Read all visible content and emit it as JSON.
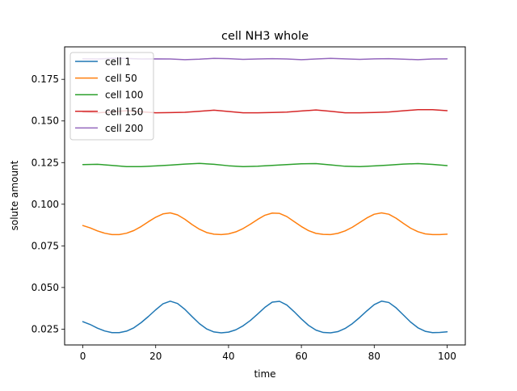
{
  "chart_data": {
    "type": "line",
    "title": "cell NH3 whole",
    "xlabel": "time",
    "ylabel": "solute amount",
    "xlim": [
      -5,
      105
    ],
    "ylim": [
      0.0155,
      0.1945
    ],
    "xticks": [
      0,
      20,
      40,
      60,
      80,
      100
    ],
    "yticks": [
      0.025,
      0.05,
      0.075,
      0.1,
      0.125,
      0.15,
      0.175
    ],
    "xtick_labels": [
      "0",
      "20",
      "40",
      "60",
      "80",
      "100"
    ],
    "ytick_labels": [
      "0.025",
      "0.050",
      "0.075",
      "0.100",
      "0.125",
      "0.150",
      "0.175"
    ],
    "grid": false,
    "legend_position": "top-left",
    "series": [
      {
        "name": "cell 1",
        "color": "#1f77b4",
        "x": [
          0,
          2,
          4,
          6,
          8,
          10,
          12,
          14,
          16,
          18,
          20,
          22,
          24,
          26,
          28,
          30,
          32,
          34,
          36,
          38,
          40,
          42,
          44,
          46,
          48,
          50,
          52,
          54,
          56,
          58,
          60,
          62,
          64,
          66,
          68,
          70,
          72,
          74,
          76,
          78,
          80,
          82,
          84,
          86,
          88,
          90,
          92,
          94,
          96,
          98,
          100
        ],
        "y": [
          0.0295,
          0.0278,
          0.0256,
          0.0239,
          0.0229,
          0.0229,
          0.0238,
          0.0258,
          0.0289,
          0.0326,
          0.0366,
          0.0402,
          0.0418,
          0.0404,
          0.0369,
          0.0325,
          0.0283,
          0.0251,
          0.0233,
          0.0228,
          0.0232,
          0.0246,
          0.027,
          0.0302,
          0.0341,
          0.0381,
          0.0412,
          0.0417,
          0.0395,
          0.0355,
          0.0311,
          0.0272,
          0.0244,
          0.023,
          0.0228,
          0.0235,
          0.0254,
          0.0283,
          0.032,
          0.036,
          0.0397,
          0.0418,
          0.041,
          0.0378,
          0.0335,
          0.0292,
          0.0258,
          0.0237,
          0.0229,
          0.023,
          0.0234
        ]
      },
      {
        "name": "cell 50",
        "color": "#ff7f0e",
        "x": [
          0,
          2,
          4,
          6,
          8,
          10,
          12,
          14,
          16,
          18,
          20,
          22,
          24,
          26,
          28,
          30,
          32,
          34,
          36,
          38,
          40,
          42,
          44,
          46,
          48,
          50,
          52,
          54,
          56,
          58,
          60,
          62,
          64,
          66,
          68,
          70,
          72,
          74,
          76,
          78,
          80,
          82,
          84,
          86,
          88,
          90,
          92,
          94,
          96,
          98,
          100
        ],
        "y": [
          0.0872,
          0.0858,
          0.084,
          0.0826,
          0.0818,
          0.0818,
          0.0826,
          0.0842,
          0.0866,
          0.0895,
          0.0922,
          0.0942,
          0.0948,
          0.0936,
          0.091,
          0.0878,
          0.085,
          0.083,
          0.082,
          0.0818,
          0.0822,
          0.0834,
          0.0854,
          0.088,
          0.0909,
          0.0934,
          0.0947,
          0.0945,
          0.0926,
          0.0896,
          0.0866,
          0.0841,
          0.0825,
          0.0819,
          0.0818,
          0.0825,
          0.084,
          0.0862,
          0.089,
          0.0918,
          0.094,
          0.0948,
          0.094,
          0.0916,
          0.0885,
          0.0856,
          0.0835,
          0.0822,
          0.0818,
          0.0818,
          0.082
        ]
      },
      {
        "name": "cell 100",
        "color": "#2ca02c",
        "x": [
          0,
          4,
          8,
          12,
          16,
          20,
          24,
          28,
          32,
          36,
          40,
          44,
          48,
          52,
          56,
          60,
          64,
          68,
          72,
          76,
          80,
          84,
          88,
          92,
          96,
          100
        ],
        "y": [
          0.1238,
          0.124,
          0.1233,
          0.1226,
          0.1226,
          0.123,
          0.1235,
          0.1241,
          0.1245,
          0.124,
          0.1231,
          0.1226,
          0.1228,
          0.1233,
          0.1238,
          0.1243,
          0.1244,
          0.1236,
          0.1228,
          0.1226,
          0.123,
          0.1235,
          0.1241,
          0.1244,
          0.1239,
          0.1232
        ]
      },
      {
        "name": "cell 150",
        "color": "#d62728",
        "x": [
          0,
          4,
          8,
          12,
          16,
          20,
          24,
          28,
          32,
          36,
          40,
          44,
          48,
          52,
          56,
          60,
          64,
          68,
          72,
          76,
          80,
          84,
          88,
          92,
          96,
          100
        ],
        "y": [
          0.1553,
          0.1549,
          0.1555,
          0.1562,
          0.1555,
          0.1549,
          0.155,
          0.1552,
          0.1558,
          0.1565,
          0.1557,
          0.1549,
          0.1549,
          0.1551,
          0.1553,
          0.156,
          0.1566,
          0.1558,
          0.1549,
          0.1549,
          0.1551,
          0.1554,
          0.1561,
          0.1568,
          0.1568,
          0.1562
        ]
      },
      {
        "name": "cell 200",
        "color": "#9467bd",
        "x": [
          0,
          4,
          8,
          12,
          16,
          20,
          24,
          28,
          32,
          36,
          40,
          44,
          48,
          52,
          56,
          60,
          64,
          68,
          72,
          76,
          80,
          84,
          88,
          92,
          96,
          100
        ],
        "y": [
          0.1873,
          0.1872,
          0.1876,
          0.1875,
          0.1872,
          0.1873,
          0.1872,
          0.1868,
          0.1871,
          0.1876,
          0.1874,
          0.187,
          0.1872,
          0.1874,
          0.1872,
          0.1868,
          0.1872,
          0.1876,
          0.1873,
          0.187,
          0.1873,
          0.1874,
          0.1871,
          0.1868,
          0.1872,
          0.1873
        ]
      }
    ]
  }
}
